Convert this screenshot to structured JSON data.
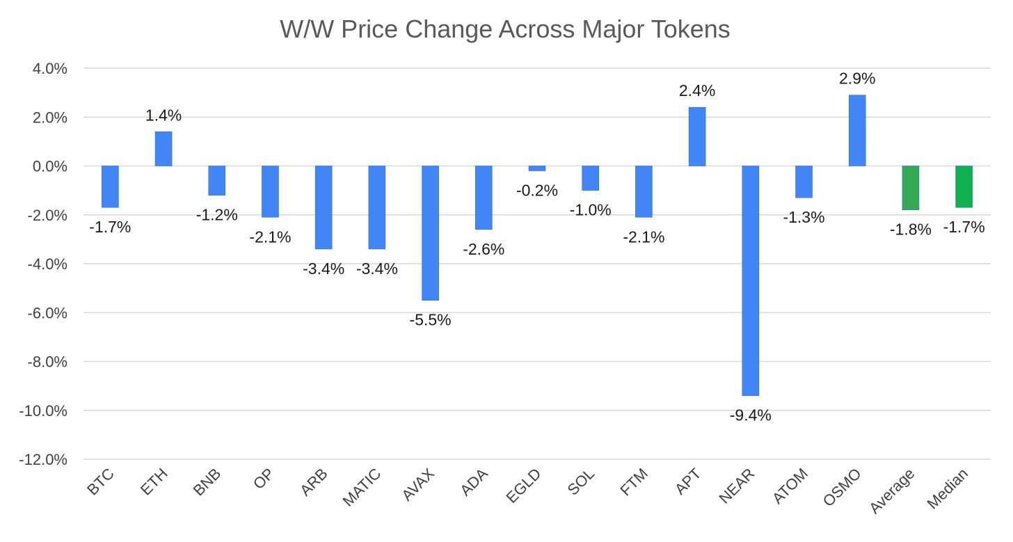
{
  "chart_data": {
    "type": "bar",
    "title": "W/W Price Change Across Major Tokens",
    "xlabel": "",
    "ylabel": "",
    "categories": [
      "BTC",
      "ETH",
      "BNB",
      "OP",
      "ARB",
      "MATIC",
      "AVAX",
      "ADA",
      "EGLD",
      "SOL",
      "FTM",
      "APT",
      "NEAR",
      "ATOM",
      "OSMO",
      "Average",
      "Median"
    ],
    "values": [
      -1.7,
      1.4,
      -1.2,
      -2.1,
      -3.4,
      -3.4,
      -5.5,
      -2.6,
      -0.2,
      -1.0,
      -2.1,
      2.4,
      -9.4,
      -1.3,
      2.9,
      -1.8,
      -1.7
    ],
    "data_labels": [
      "-1.7%",
      "1.4%",
      "-1.2%",
      "-2.1%",
      "-3.4%",
      "-3.4%",
      "-5.5%",
      "-2.6%",
      "-0.2%",
      "-1.0%",
      "-2.1%",
      "2.4%",
      "-9.4%",
      "-1.3%",
      "2.9%",
      "-1.8%",
      "-1.7%"
    ],
    "ylim": [
      -12,
      4
    ],
    "yticks": [
      4,
      2,
      0,
      -2,
      -4,
      -6,
      -8,
      -10,
      -12
    ],
    "ytick_labels": [
      "4.0%",
      "2.0%",
      "0.0%",
      "-2.0%",
      "-4.0%",
      "-6.0%",
      "-8.0%",
      "-10.0%",
      "-12.0%"
    ],
    "grid": true,
    "legend": "none",
    "colors": {
      "token_bar": "#4285f4",
      "average_bar": "#34a853",
      "median_bar": "#0fb14f"
    },
    "bar_colors": [
      "token_bar",
      "token_bar",
      "token_bar",
      "token_bar",
      "token_bar",
      "token_bar",
      "token_bar",
      "token_bar",
      "token_bar",
      "token_bar",
      "token_bar",
      "token_bar",
      "token_bar",
      "token_bar",
      "token_bar",
      "average_bar",
      "median_bar"
    ]
  }
}
